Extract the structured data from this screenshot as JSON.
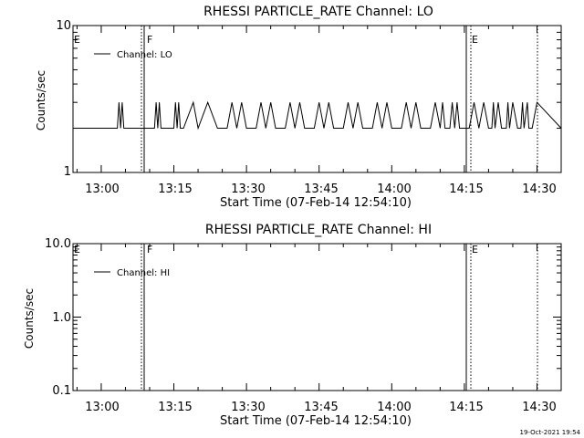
{
  "chart_data": [
    {
      "type": "line",
      "title": "RHESSI PARTICLE_RATE Channel: LO",
      "xlabel": "Start Time (07-Feb-14 12:54:10)",
      "ylabel": "Counts/sec",
      "yscale": "log",
      "ylim": [
        1,
        10
      ],
      "ytick_labels": [
        "1",
        "10"
      ],
      "xlim": [
        "12:54:10",
        "14:35:00"
      ],
      "xtick_labels": [
        "13:00",
        "13:15",
        "13:30",
        "13:45",
        "14:00",
        "14:15",
        "14:30"
      ],
      "grid": false,
      "legend": {
        "position": "top-left",
        "entries": [
          "Channel: LO"
        ]
      },
      "markers": [
        {
          "label": "E",
          "time": "12:54:10",
          "style": "none"
        },
        {
          "label": "F",
          "time": "13:09:00",
          "style": "solid"
        },
        {
          "label": "E",
          "time": "14:15:00",
          "style": "solid"
        }
      ],
      "dotted_lines": [
        "13:08:30",
        "14:16:00",
        "14:29:00"
      ],
      "series": [
        {
          "name": "Channel: LO",
          "times": [
            "12:54:10",
            "13:03:00",
            "13:03:20",
            "13:03:40",
            "13:04:00",
            "13:04:20",
            "13:04:40",
            "13:05:00",
            "13:11:00",
            "13:11:20",
            "13:11:40",
            "13:12:00",
            "13:12:20",
            "13:12:40",
            "13:15:00",
            "13:15:20",
            "13:15:40",
            "13:16:00",
            "13:16:20",
            "13:16:40",
            "13:17:00",
            "13:19:00",
            "13:20:00",
            "13:22:00",
            "13:24:00",
            "13:25:00",
            "13:26:00",
            "13:27:00",
            "13:28:00",
            "13:29:00",
            "13:30:00",
            "13:31:00",
            "13:32:00",
            "13:33:00",
            "13:34:00",
            "13:35:00",
            "13:36:00",
            "13:37:00",
            "13:38:00",
            "13:39:00",
            "13:40:00",
            "13:41:00",
            "13:42:00",
            "13:43:00",
            "13:44:00",
            "13:45:00",
            "13:46:00",
            "13:47:00",
            "13:48:00",
            "13:49:00",
            "13:50:00",
            "13:51:00",
            "13:52:00",
            "13:53:00",
            "13:54:00",
            "13:55:00",
            "13:56:00",
            "13:57:00",
            "13:58:00",
            "13:59:00",
            "14:00:00",
            "14:01:00",
            "14:02:00",
            "14:03:00",
            "14:04:00",
            "14:05:00",
            "14:06:00",
            "14:07:00",
            "14:08:00",
            "14:09:00",
            "14:10:00",
            "14:10:30",
            "14:11:00",
            "14:11:30",
            "14:12:00",
            "14:12:30",
            "14:13:00",
            "14:13:30",
            "14:14:00",
            "14:15:00",
            "14:16:00",
            "14:17:00",
            "14:18:00",
            "14:19:00",
            "14:20:00",
            "14:20:20",
            "14:20:40",
            "14:21:00",
            "14:21:20",
            "14:22:00",
            "14:22:40",
            "14:23:00",
            "14:23:40",
            "14:24:00",
            "14:24:20",
            "14:25:00",
            "14:26:00",
            "14:26:20",
            "14:26:40",
            "14:27:00",
            "14:27:20",
            "14:28:00",
            "14:28:20",
            "14:28:40",
            "14:29:00",
            "14:30:00",
            "14:35:00"
          ],
          "values": [
            2,
            2,
            2,
            3,
            2,
            3,
            2,
            2,
            2,
            3,
            2,
            3,
            2,
            2,
            2,
            3,
            2,
            3,
            2,
            2,
            2,
            3,
            2,
            3,
            2,
            2,
            2,
            3,
            2,
            3,
            2,
            2,
            2,
            3,
            2,
            3,
            2,
            2,
            2,
            3,
            2,
            3,
            2,
            2,
            2,
            3,
            2,
            3,
            2,
            2,
            2,
            3,
            2,
            3,
            2,
            2,
            2,
            3,
            2,
            3,
            2,
            2,
            2,
            3,
            2,
            3,
            2,
            2,
            2,
            3,
            2,
            3,
            2,
            2,
            2,
            3,
            2,
            3,
            2,
            2,
            2,
            3,
            2,
            3,
            2,
            2,
            2,
            3,
            2,
            3,
            2,
            2,
            2,
            3,
            2,
            3,
            2,
            2,
            2,
            3,
            2,
            3,
            2,
            2,
            2,
            3,
            2
          ]
        }
      ]
    },
    {
      "type": "line",
      "title": "RHESSI PARTICLE_RATE Channel: HI",
      "xlabel": "Start Time (07-Feb-14 12:54:10)",
      "ylabel": "Counts/sec",
      "yscale": "log",
      "ylim": [
        0.1,
        10
      ],
      "ytick_labels": [
        "0.1",
        "1.0",
        "10.0"
      ],
      "xlim": [
        "12:54:10",
        "14:35:00"
      ],
      "xtick_labels": [
        "13:00",
        "13:15",
        "13:30",
        "13:45",
        "14:00",
        "14:15",
        "14:30"
      ],
      "grid": false,
      "legend": {
        "position": "top-left",
        "entries": [
          "Channel: HI"
        ]
      },
      "markers": [
        {
          "label": "E",
          "time": "12:54:10",
          "style": "none"
        },
        {
          "label": "F",
          "time": "13:09:00",
          "style": "solid"
        },
        {
          "label": "E",
          "time": "14:15:00",
          "style": "solid"
        }
      ],
      "dotted_lines": [
        "13:08:30",
        "14:16:00",
        "14:29:00"
      ],
      "series": [
        {
          "name": "Channel: HI",
          "times": [],
          "values": []
        }
      ]
    }
  ],
  "timestamp": "19-Oct-2021 19:54"
}
